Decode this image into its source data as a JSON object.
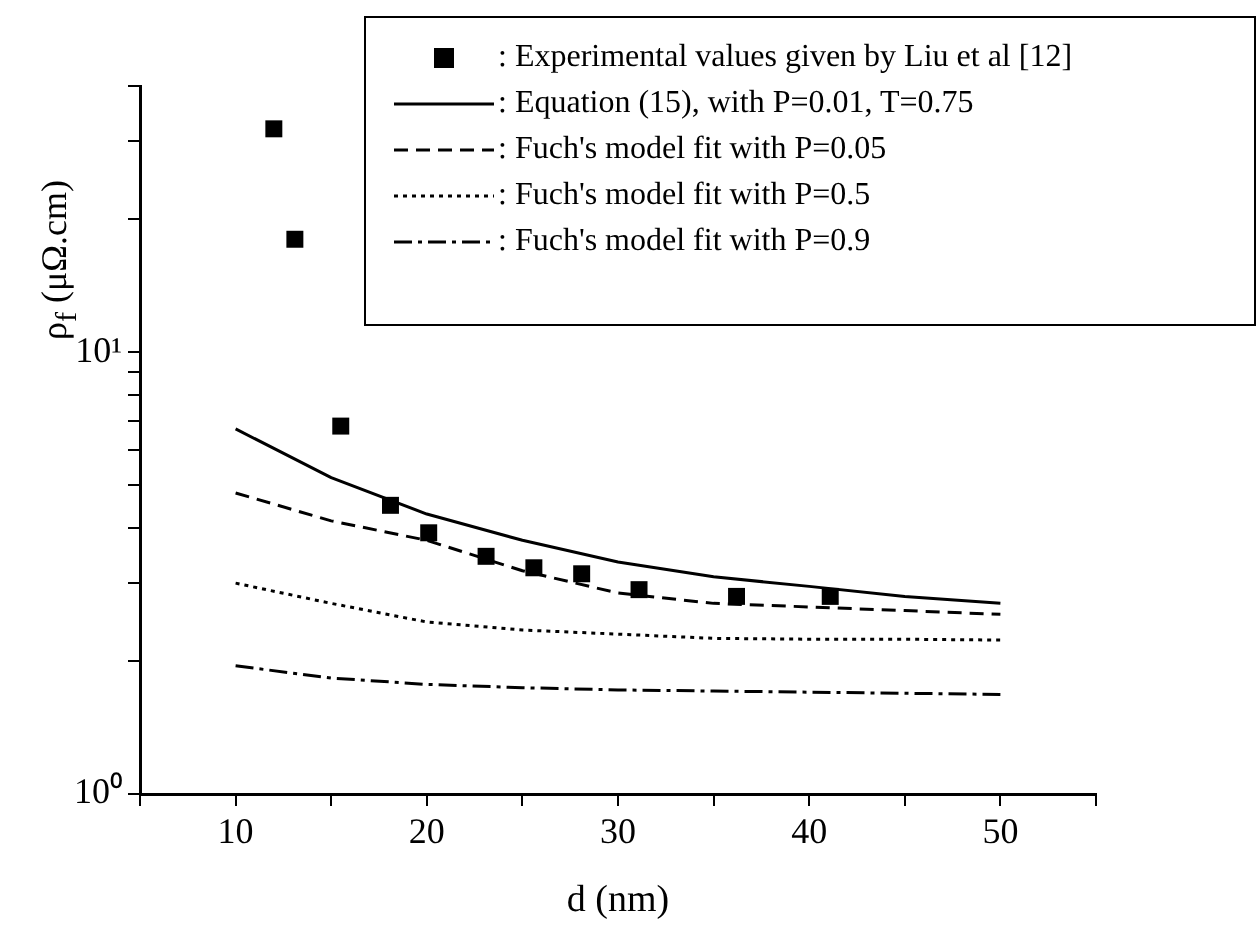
{
  "chart_data": {
    "type": "line",
    "xlabel": "d (nm)",
    "ylabel": "ρ$_{f}$ (μΩ.cm)",
    "log": "y",
    "grid": false,
    "legend": "top right",
    "xlim": [
      5,
      55
    ],
    "xticks": [
      {
        "value": 5,
        "label": null
      },
      10,
      {
        "value": 15,
        "label": null
      },
      20,
      {
        "value": 25,
        "label": null
      },
      30,
      {
        "value": 35,
        "label": null
      },
      40,
      {
        "value": 45,
        "label": null
      },
      50,
      {
        "value": 55,
        "label": null
      }
    ],
    "ylim": [
      1,
      40
    ],
    "yticks": [
      {
        "value": 1,
        "label": "10⁰"
      },
      {
        "value": 2,
        "label": null
      },
      {
        "value": 3,
        "label": null
      },
      {
        "value": 4,
        "label": null
      },
      {
        "value": 5,
        "label": null
      },
      {
        "value": 6,
        "label": null
      },
      {
        "value": 7,
        "label": null
      },
      {
        "value": 8,
        "label": null
      },
      {
        "value": 9,
        "label": null
      },
      {
        "value": 10,
        "label": "10¹"
      },
      {
        "value": 20,
        "label": null
      },
      {
        "value": 30,
        "label": null
      },
      {
        "value": 40,
        "label": null
      }
    ],
    "series": [
      {
        "name": ": Experimental values given by Liu et al [12]",
        "type": "scatter",
        "marker": "square",
        "color": "#000000",
        "x": [
          12,
          13.1,
          15.5,
          18.1,
          20.1,
          23.1,
          25.6,
          28.1,
          31.1,
          36.2,
          41.1
        ],
        "values": [
          32,
          18,
          6.8,
          4.5,
          3.9,
          3.45,
          3.25,
          3.15,
          2.9,
          2.8,
          2.8
        ]
      },
      {
        "name": ": Equation (15), with P=0.01, T=0.75",
        "line_style": "solid",
        "color": "#000000",
        "x": [
          10,
          15,
          20,
          25,
          30,
          35,
          40,
          45,
          50
        ],
        "values": [
          6.7,
          5.2,
          4.3,
          3.75,
          3.35,
          3.1,
          2.95,
          2.8,
          2.7
        ]
      },
      {
        "name": ": Fuch's model fit with P=0.05",
        "line_style": "dashed",
        "color": "#000000",
        "x": [
          10,
          15,
          20,
          25,
          30,
          35,
          40,
          45,
          50
        ],
        "values": [
          4.8,
          4.15,
          3.75,
          3.2,
          2.85,
          2.7,
          2.65,
          2.6,
          2.55
        ]
      },
      {
        "name": ": Fuch's model fit with P=0.5",
        "line_style": "dotted",
        "color": "#000000",
        "x": [
          10,
          15,
          20,
          25,
          30,
          35,
          40,
          45,
          50
        ],
        "values": [
          3,
          2.7,
          2.45,
          2.35,
          2.3,
          2.25,
          2.24,
          2.24,
          2.23
        ]
      },
      {
        "name": ": Fuch's model fit with P=0.9",
        "line_style": "dashdot",
        "color": "#000000",
        "x": [
          10,
          15,
          20,
          25,
          30,
          35,
          40,
          45,
          50
        ],
        "values": [
          1.95,
          1.83,
          1.77,
          1.74,
          1.72,
          1.71,
          1.7,
          1.69,
          1.68
        ]
      }
    ]
  }
}
